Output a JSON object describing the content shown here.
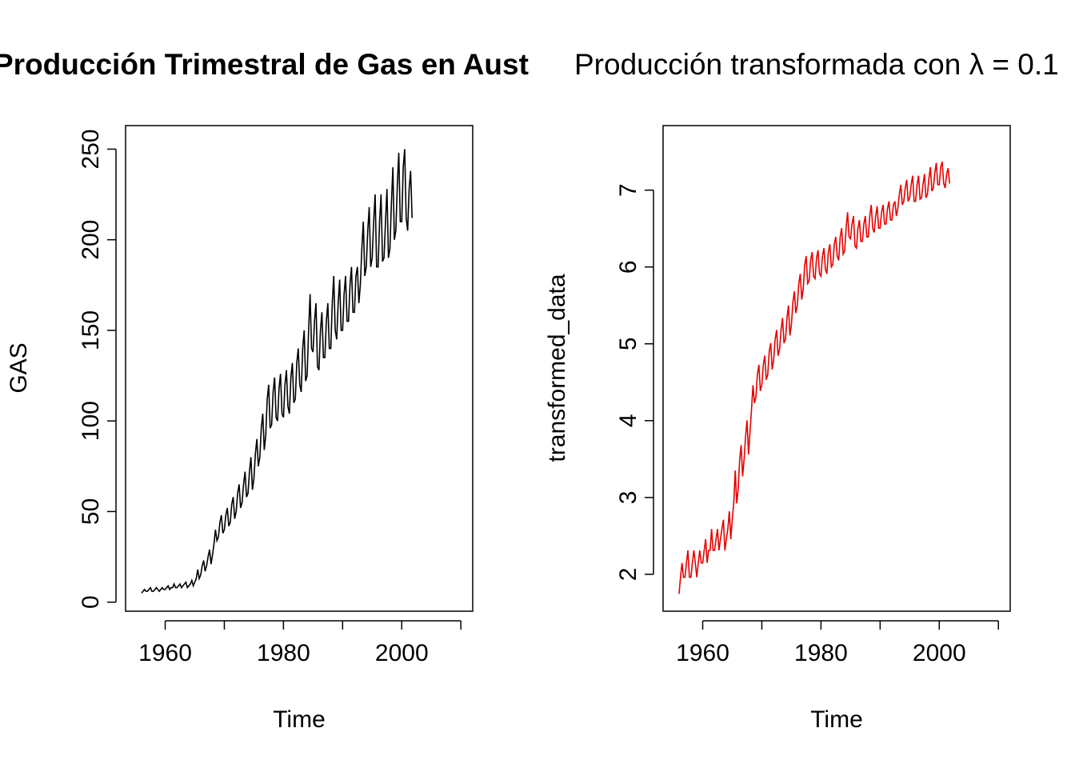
{
  "chart_data": [
    {
      "type": "line",
      "title": "Producción Trimestral de Gas en Aust",
      "xlabel": "Time",
      "ylabel": "GAS",
      "xlim": [
        1953.3,
        2012.0
      ],
      "ylim": [
        -5,
        263
      ],
      "x_ticks": [
        1960,
        1980,
        2000
      ],
      "x_ticks_axis": [
        1960,
        1970,
        1980,
        1990,
        2000,
        2010
      ],
      "x_tick_labels": [
        "1960",
        "1980",
        "2000"
      ],
      "y_ticks": [
        0,
        50,
        100,
        150,
        200,
        250
      ],
      "y_tick_labels": [
        "0",
        "50",
        "100",
        "150",
        "200",
        "250"
      ],
      "grid": false,
      "color": "#000000",
      "series": [
        {
          "x_start": 1956.0,
          "step": 0.25,
          "values": [
            5,
            6,
            7,
            6,
            6,
            7,
            8,
            6,
            6,
            7,
            8,
            7,
            6,
            7,
            8,
            7,
            7,
            8,
            9,
            7,
            8,
            8,
            10,
            8,
            8,
            9,
            10,
            8,
            9,
            10,
            11,
            8,
            9,
            10,
            12,
            9,
            11,
            13,
            18,
            13,
            15,
            20,
            23,
            17,
            20,
            25,
            29,
            21,
            26,
            32,
            40,
            34,
            36,
            44,
            48,
            38,
            40,
            48,
            52,
            42,
            44,
            54,
            58,
            46,
            50,
            60,
            65,
            52,
            55,
            65,
            72,
            58,
            60,
            72,
            80,
            62,
            68,
            82,
            90,
            75,
            80,
            96,
            104,
            84,
            92,
            112,
            120,
            96,
            98,
            116,
            124,
            102,
            100,
            118,
            126,
            104,
            102,
            120,
            128,
            108,
            104,
            124,
            132,
            110,
            112,
            132,
            140,
            120,
            116,
            140,
            150,
            122,
            125,
            150,
            170,
            140,
            138,
            155,
            165,
            130,
            128,
            150,
            160,
            135,
            135,
            155,
            165,
            140,
            140,
            165,
            180,
            150,
            145,
            165,
            178,
            150,
            150,
            170,
            180,
            155,
            155,
            175,
            185,
            160,
            160,
            180,
            185,
            165,
            175,
            195,
            210,
            180,
            185,
            205,
            218,
            185,
            190,
            210,
            225,
            185,
            185,
            210,
            225,
            188,
            190,
            210,
            228,
            190,
            195,
            220,
            240,
            200,
            205,
            230,
            248,
            210,
            210,
            240,
            250,
            212,
            205,
            228,
            238,
            212
          ]
        }
      ]
    },
    {
      "type": "line",
      "title": "Producción transformada con λ = 0.1",
      "xlabel": "Time",
      "ylabel": "transformed_data",
      "xlim": [
        1953.3,
        2012.0
      ],
      "ylim": [
        1.52,
        7.84
      ],
      "x_ticks": [
        1960,
        1980,
        2000
      ],
      "x_ticks_axis": [
        1960,
        1970,
        1980,
        1990,
        2000,
        2010
      ],
      "x_tick_labels": [
        "1960",
        "1980",
        "2000"
      ],
      "y_ticks": [
        2,
        3,
        4,
        5,
        6,
        7
      ],
      "y_tick_labels": [
        "2",
        "3",
        "4",
        "5",
        "6",
        "7"
      ],
      "grid": false,
      "color": "#e60000",
      "series": [
        {
          "x_start": 1956.0,
          "step": 0.25,
          "lambda": 0.1
        }
      ]
    }
  ]
}
